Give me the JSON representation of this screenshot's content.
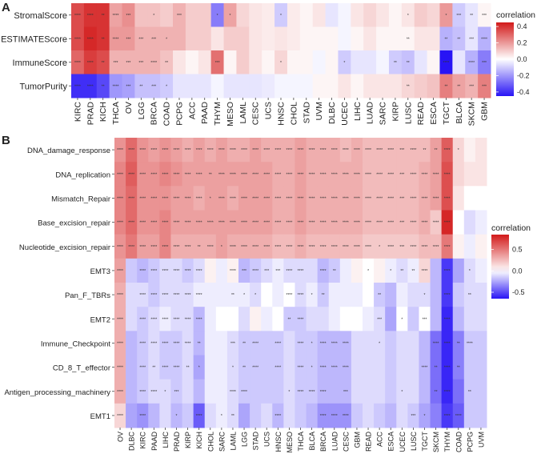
{
  "chart_data": [
    {
      "type": "heatmap",
      "panel": "A",
      "rows": [
        "StromalScore",
        "ESTIMATEScore",
        "ImmuneScore",
        "TumorPurity"
      ],
      "columns": [
        "KIRC",
        "PRAD",
        "KICH",
        "THCA",
        "OV",
        "LGG",
        "BRCA",
        "COAD",
        "PCPG",
        "ACC",
        "PAAD",
        "THYM",
        "MESO",
        "LAML",
        "CESC",
        "UCS",
        "HNSC",
        "CHOL",
        "STAD",
        "UVM",
        "DLBC",
        "UCEC",
        "LIHC",
        "LUAD",
        "SARC",
        "KIRP",
        "LUSC",
        "READ",
        "ESCA",
        "TGCT",
        "BLCA",
        "SKCM",
        "GBM"
      ],
      "values": [
        [
          0.35,
          0.4,
          0.4,
          0.18,
          0.22,
          0.12,
          0.12,
          0.1,
          0.15,
          0.1,
          0.1,
          -0.25,
          0.18,
          0.08,
          0.05,
          0.04,
          -0.1,
          0.04,
          0.02,
          0.05,
          -0.05,
          -0.02,
          0.05,
          0.08,
          0.05,
          0.02,
          0.05,
          0.1,
          0.08,
          0.2,
          -0.1,
          -0.05,
          0.02
        ],
        [
          0.35,
          0.42,
          0.4,
          0.2,
          0.2,
          0.15,
          0.15,
          0.15,
          0.15,
          0.1,
          0.1,
          0.05,
          0.1,
          0.1,
          0.05,
          0.04,
          0.05,
          0.04,
          0.02,
          0.02,
          0.02,
          -0.02,
          0.02,
          0.05,
          0.02,
          0.02,
          0.02,
          0.05,
          0.05,
          -0.15,
          -0.12,
          -0.05,
          -0.15
        ],
        [
          0.3,
          0.38,
          0.35,
          0.15,
          0.15,
          0.15,
          0.15,
          0.12,
          0.05,
          0.02,
          0.05,
          0.28,
          0.02,
          0.1,
          0.05,
          0.02,
          0.08,
          0.02,
          0.02,
          -0.02,
          0.02,
          -0.1,
          -0.05,
          -0.05,
          -0.02,
          -0.1,
          -0.12,
          -0.05,
          0.02,
          -0.48,
          -0.05,
          -0.15,
          -0.25
        ],
        [
          -0.4,
          -0.4,
          -0.35,
          -0.2,
          -0.18,
          -0.12,
          -0.12,
          -0.1,
          -0.05,
          -0.05,
          -0.05,
          -0.02,
          -0.05,
          -0.05,
          -0.05,
          -0.04,
          -0.02,
          -0.02,
          -0.02,
          0.02,
          0.02,
          0.05,
          0.02,
          0.05,
          0.05,
          0.05,
          0.08,
          0.1,
          0.12,
          0.25,
          0.18,
          0.15,
          0.25
        ]
      ],
      "significance": [
        [
          "****",
          "****",
          "**",
          "****",
          "***",
          "",
          "*",
          "",
          "***",
          "",
          "",
          "*",
          "*",
          "",
          "",
          "",
          "*",
          "",
          "",
          "",
          "",
          "",
          "",
          "",
          "",
          "",
          "*",
          "",
          "",
          "*",
          "***",
          "**",
          "***"
        ],
        [
          "****",
          "****",
          "**",
          "****",
          "***",
          "***",
          "***",
          "*",
          "",
          "",
          "",
          "",
          "",
          "",
          "",
          "",
          "",
          "",
          "",
          "",
          "",
          "",
          "",
          "",
          "",
          "",
          "**",
          "",
          "",
          "**",
          "**",
          "***",
          "****"
        ],
        [
          "****",
          "****",
          "**",
          "***",
          "***",
          "***",
          "****",
          "**",
          "",
          "",
          "",
          "***",
          "",
          "",
          "",
          "",
          "*",
          "",
          "",
          "",
          "",
          "*",
          "",
          "",
          "",
          "**",
          "**",
          "",
          "",
          "****",
          "",
          "****",
          "***"
        ],
        [
          "****",
          "****",
          "**",
          "****",
          "***",
          "**",
          "***",
          "*",
          "",
          "",
          "",
          "",
          "",
          "",
          "",
          "",
          "",
          "",
          "",
          "",
          "",
          "",
          "",
          "",
          "",
          "",
          "**",
          "",
          "",
          "**",
          "**",
          "***",
          "***"
        ]
      ],
      "legend": {
        "title": "correlation",
        "ticks": [
          "0.4",
          "0.2",
          "0.0",
          "-0.2",
          "-0.4"
        ],
        "range": [
          -0.45,
          0.45
        ]
      }
    },
    {
      "type": "heatmap",
      "panel": "B",
      "rows": [
        "DNA_damage_response",
        "DNA_replication",
        "Mismatch_Repair",
        "Base_excision_repair",
        "Nucleotide_excision_repair",
        "EMT3",
        "Pan_F_TBRs",
        "EMT2",
        "Immune_Checkpoint",
        "CD_8_T_effector",
        "Antigen_processing_machinery",
        "EMT1"
      ],
      "columns": [
        "OV",
        "DLBC",
        "KIRC",
        "PAAD",
        "LIHC",
        "PRAD",
        "KIRP",
        "KICH",
        "CHOL",
        "SARC",
        "LAML",
        "LGG",
        "STAD",
        "UCS",
        "HNSC",
        "MESO",
        "THCA",
        "BLCA",
        "BRCA",
        "LUAD",
        "CESC",
        "GBM",
        "READ",
        "ACC",
        "ESCA",
        "UCEC",
        "LUSC",
        "TGCT",
        "SKCM",
        "THYM",
        "COAD",
        "PCPG",
        "UVM"
      ],
      "values": [
        [
          0.4,
          0.55,
          0.4,
          0.35,
          0.4,
          0.35,
          0.3,
          0.35,
          0.3,
          0.35,
          0.3,
          0.3,
          0.35,
          0.3,
          0.3,
          0.3,
          0.35,
          0.3,
          0.3,
          0.3,
          0.25,
          0.3,
          0.25,
          0.25,
          0.25,
          0.25,
          0.25,
          0.25,
          0.35,
          0.6,
          0.15,
          0.05,
          0.1
        ],
        [
          0.45,
          0.6,
          0.4,
          0.4,
          0.45,
          0.4,
          0.35,
          0.35,
          0.35,
          0.35,
          0.35,
          0.35,
          0.35,
          0.35,
          0.3,
          0.3,
          0.35,
          0.3,
          0.3,
          0.3,
          0.3,
          0.3,
          0.25,
          0.25,
          0.25,
          0.25,
          0.25,
          0.3,
          0.35,
          0.65,
          0.15,
          0.1,
          0.1
        ],
        [
          0.45,
          0.55,
          0.4,
          0.4,
          0.4,
          0.35,
          0.35,
          0.3,
          0.35,
          0.35,
          0.3,
          0.35,
          0.35,
          0.35,
          0.3,
          0.3,
          0.35,
          0.3,
          0.3,
          0.3,
          0.3,
          0.3,
          0.25,
          0.25,
          0.25,
          0.25,
          0.25,
          0.3,
          0.35,
          0.65,
          0.1,
          0.0,
          0.0
        ],
        [
          0.45,
          0.55,
          0.4,
          0.4,
          0.45,
          0.35,
          0.35,
          0.35,
          0.35,
          0.35,
          0.35,
          0.35,
          0.35,
          0.35,
          0.3,
          0.3,
          0.35,
          0.3,
          0.3,
          0.3,
          0.3,
          0.3,
          0.25,
          0.25,
          0.25,
          0.25,
          0.25,
          0.3,
          0.2,
          0.8,
          0.0,
          -0.1,
          -0.05
        ],
        [
          0.4,
          0.5,
          0.35,
          0.35,
          0.45,
          0.3,
          0.3,
          0.3,
          0.3,
          0.35,
          0.3,
          0.3,
          0.3,
          0.3,
          0.25,
          0.25,
          0.3,
          0.25,
          0.25,
          0.25,
          0.25,
          0.25,
          0.2,
          0.2,
          0.2,
          0.2,
          0.2,
          0.25,
          0.25,
          0.5,
          0.05,
          -0.05,
          0.05
        ],
        [
          0.35,
          -0.15,
          -0.2,
          -0.15,
          -0.1,
          -0.1,
          -0.15,
          -0.1,
          0.05,
          -0.05,
          0.05,
          -0.2,
          -0.15,
          -0.1,
          -0.05,
          -0.1,
          -0.1,
          -0.1,
          -0.2,
          -0.15,
          -0.05,
          0.05,
          0.0,
          0.05,
          -0.05,
          -0.1,
          -0.05,
          0.15,
          -0.2,
          -0.55,
          -0.25,
          -0.1,
          -0.05
        ],
        [
          0.3,
          -0.1,
          -0.1,
          -0.15,
          -0.1,
          -0.1,
          -0.1,
          -0.05,
          -0.05,
          -0.05,
          -0.05,
          -0.05,
          -0.1,
          0.0,
          -0.05,
          0.0,
          -0.1,
          -0.05,
          -0.15,
          -0.05,
          -0.05,
          -0.05,
          0.0,
          -0.15,
          -0.2,
          -0.05,
          -0.1,
          -0.1,
          -0.2,
          -0.55,
          -0.15,
          -0.1,
          -0.1
        ],
        [
          0.3,
          -0.1,
          -0.15,
          -0.1,
          -0.05,
          -0.1,
          -0.1,
          -0.2,
          -0.05,
          0.0,
          0.0,
          -0.1,
          0.05,
          -0.05,
          0.0,
          -0.15,
          -0.15,
          -0.1,
          -0.1,
          -0.05,
          0.0,
          0.0,
          -0.05,
          -0.1,
          -0.25,
          0.0,
          -0.15,
          0.0,
          -0.2,
          -0.6,
          -0.2,
          -0.1,
          -0.1
        ],
        [
          0.3,
          -0.2,
          -0.15,
          -0.1,
          -0.15,
          -0.15,
          -0.1,
          -0.2,
          -0.05,
          -0.05,
          -0.1,
          -0.15,
          -0.15,
          -0.15,
          -0.15,
          -0.1,
          -0.15,
          -0.15,
          -0.2,
          -0.2,
          -0.2,
          -0.1,
          -0.1,
          -0.1,
          -0.15,
          -0.1,
          -0.1,
          -0.2,
          -0.4,
          -0.6,
          -0.35,
          -0.15,
          -0.15
        ],
        [
          0.3,
          -0.2,
          -0.15,
          -0.1,
          -0.15,
          -0.15,
          -0.1,
          -0.25,
          -0.05,
          -0.05,
          -0.1,
          -0.15,
          -0.15,
          -0.15,
          -0.15,
          -0.1,
          -0.15,
          -0.15,
          -0.2,
          -0.2,
          -0.2,
          -0.1,
          -0.1,
          -0.1,
          -0.15,
          -0.1,
          -0.1,
          -0.2,
          -0.4,
          -0.6,
          -0.35,
          -0.15,
          -0.15
        ],
        [
          0.3,
          -0.2,
          -0.15,
          -0.1,
          -0.1,
          -0.15,
          -0.1,
          -0.2,
          -0.05,
          -0.05,
          -0.1,
          -0.15,
          -0.15,
          -0.15,
          -0.15,
          -0.1,
          -0.15,
          -0.15,
          -0.2,
          -0.2,
          -0.2,
          -0.1,
          -0.1,
          -0.1,
          -0.15,
          -0.1,
          -0.1,
          -0.2,
          -0.4,
          -0.6,
          -0.4,
          -0.15,
          -0.15
        ],
        [
          0.15,
          -0.25,
          -0.3,
          -0.2,
          -0.1,
          -0.2,
          -0.15,
          -0.45,
          -0.1,
          -0.05,
          -0.1,
          -0.25,
          -0.15,
          -0.1,
          -0.2,
          -0.1,
          -0.15,
          -0.2,
          -0.3,
          -0.3,
          -0.3,
          -0.15,
          -0.1,
          -0.15,
          -0.2,
          -0.1,
          -0.15,
          -0.25,
          -0.35,
          -0.55,
          -0.45,
          -0.15,
          -0.15
        ]
      ],
      "significance": [
        [
          "****",
          "****",
          "****",
          "****",
          "****",
          "****",
          "****",
          "****",
          "****",
          "****",
          "****",
          "****",
          "****",
          "****",
          "****",
          "****",
          "****",
          "****",
          "****",
          "****",
          "****",
          "****",
          "****",
          "****",
          "****",
          "***",
          "****",
          "**",
          "**",
          "****",
          "*",
          "",
          ""
        ],
        [
          "****",
          "****",
          "****",
          "****",
          "****",
          "****",
          "****",
          "****",
          "**",
          "****",
          "****",
          "****",
          "****",
          "****",
          "****",
          "****",
          "****",
          "****",
          "****",
          "****",
          "****",
          "****",
          "****",
          "****",
          "****",
          "***",
          "****",
          "****",
          "****",
          "****",
          "",
          "",
          ""
        ],
        [
          "****",
          "****",
          "****",
          "****",
          "****",
          "****",
          "****",
          "****",
          "*",
          "****",
          "****",
          "****",
          "****",
          "****",
          "****",
          "****",
          "****",
          "****",
          "****",
          "****",
          "****",
          "****",
          "****",
          "****",
          "****",
          "***",
          "****",
          "****",
          "****",
          "****",
          "",
          "",
          ""
        ],
        [
          "****",
          "****",
          "****",
          "****",
          "****",
          "****",
          "****",
          "****",
          "****",
          "****",
          "****",
          "****",
          "****",
          "****",
          "****",
          "****",
          "****",
          "****",
          "****",
          "****",
          "****",
          "****",
          "****",
          "****",
          "****",
          "***",
          "****",
          "****",
          "****",
          "****",
          "",
          "",
          ""
        ],
        [
          "****",
          "****",
          "****",
          "****",
          "****",
          "****",
          "****",
          "**",
          "****",
          "*",
          "****",
          "****",
          "****",
          "****",
          "****",
          "****",
          "****",
          "****",
          "****",
          "****",
          "****",
          "****",
          "****",
          "*",
          "****",
          "***",
          "****",
          "****",
          "****",
          "****",
          "",
          "",
          ""
        ],
        [
          "****",
          "",
          "****",
          "****",
          "****",
          "****",
          "****",
          "****",
          "",
          "",
          "****",
          "***",
          "****",
          "***",
          "***",
          "****",
          "****",
          "",
          "****",
          "**",
          "",
          "",
          "*",
          "",
          "*",
          "**",
          "**",
          "****",
          "",
          "****",
          "",
          "*",
          ""
        ],
        [
          "****",
          "",
          "****",
          "****",
          "****",
          "****",
          "****",
          "****",
          "",
          "",
          "**",
          "*",
          "*",
          "",
          "",
          "****",
          "****",
          "*",
          "**",
          "",
          "",
          "",
          "",
          "**",
          "",
          "",
          "",
          "*",
          "",
          "****",
          "",
          "**",
          ""
        ],
        [
          "****",
          "",
          "****",
          "****",
          "****",
          "****",
          "****",
          "****",
          "",
          "",
          "",
          "",
          "",
          "",
          "",
          "**",
          "****",
          "",
          "",
          "",
          "",
          "",
          "",
          "***",
          "",
          "*",
          "",
          "***",
          "",
          "****",
          "",
          "",
          ""
        ],
        [
          "****",
          "",
          "****",
          "****",
          "****",
          "****",
          "****",
          "**",
          "",
          "",
          "***",
          "**",
          "****",
          "",
          "****",
          "",
          "****",
          "*",
          "****",
          "****",
          "****",
          "",
          "",
          "*",
          "",
          "",
          "",
          "",
          "****",
          "****",
          "**",
          "****",
          ""
        ],
        [
          "****",
          "",
          "****",
          "**",
          "****",
          "****",
          "**",
          "*",
          "",
          "",
          "*",
          "**",
          "****",
          "",
          "****",
          "",
          "****",
          "*",
          "****",
          "****",
          "****",
          "",
          "",
          "",
          "",
          "",
          "",
          "****",
          "**",
          "****",
          "**",
          "",
          ""
        ],
        [
          "****",
          "",
          "****",
          "****",
          "*",
          "***",
          "",
          "",
          "",
          "",
          "****",
          "****",
          "",
          "",
          "",
          "*",
          "****",
          "****",
          "****",
          "",
          "***",
          "",
          "",
          "",
          "",
          "*",
          "",
          "",
          "**",
          "****",
          "",
          "**",
          ""
        ],
        [
          "****",
          "",
          "****",
          "",
          "",
          "*",
          "",
          "****",
          "",
          "*",
          "**",
          "",
          "",
          "",
          "****",
          "",
          "",
          "",
          "****",
          "****",
          "****",
          "",
          "",
          "",
          "",
          "",
          "***",
          "*",
          "",
          "****",
          "****",
          "",
          ""
        ]
      ],
      "legend": {
        "title": "correlation",
        "ticks": [
          "0.5",
          "0.0",
          "-0.5"
        ],
        "range": [
          -0.65,
          0.85
        ]
      }
    }
  ]
}
